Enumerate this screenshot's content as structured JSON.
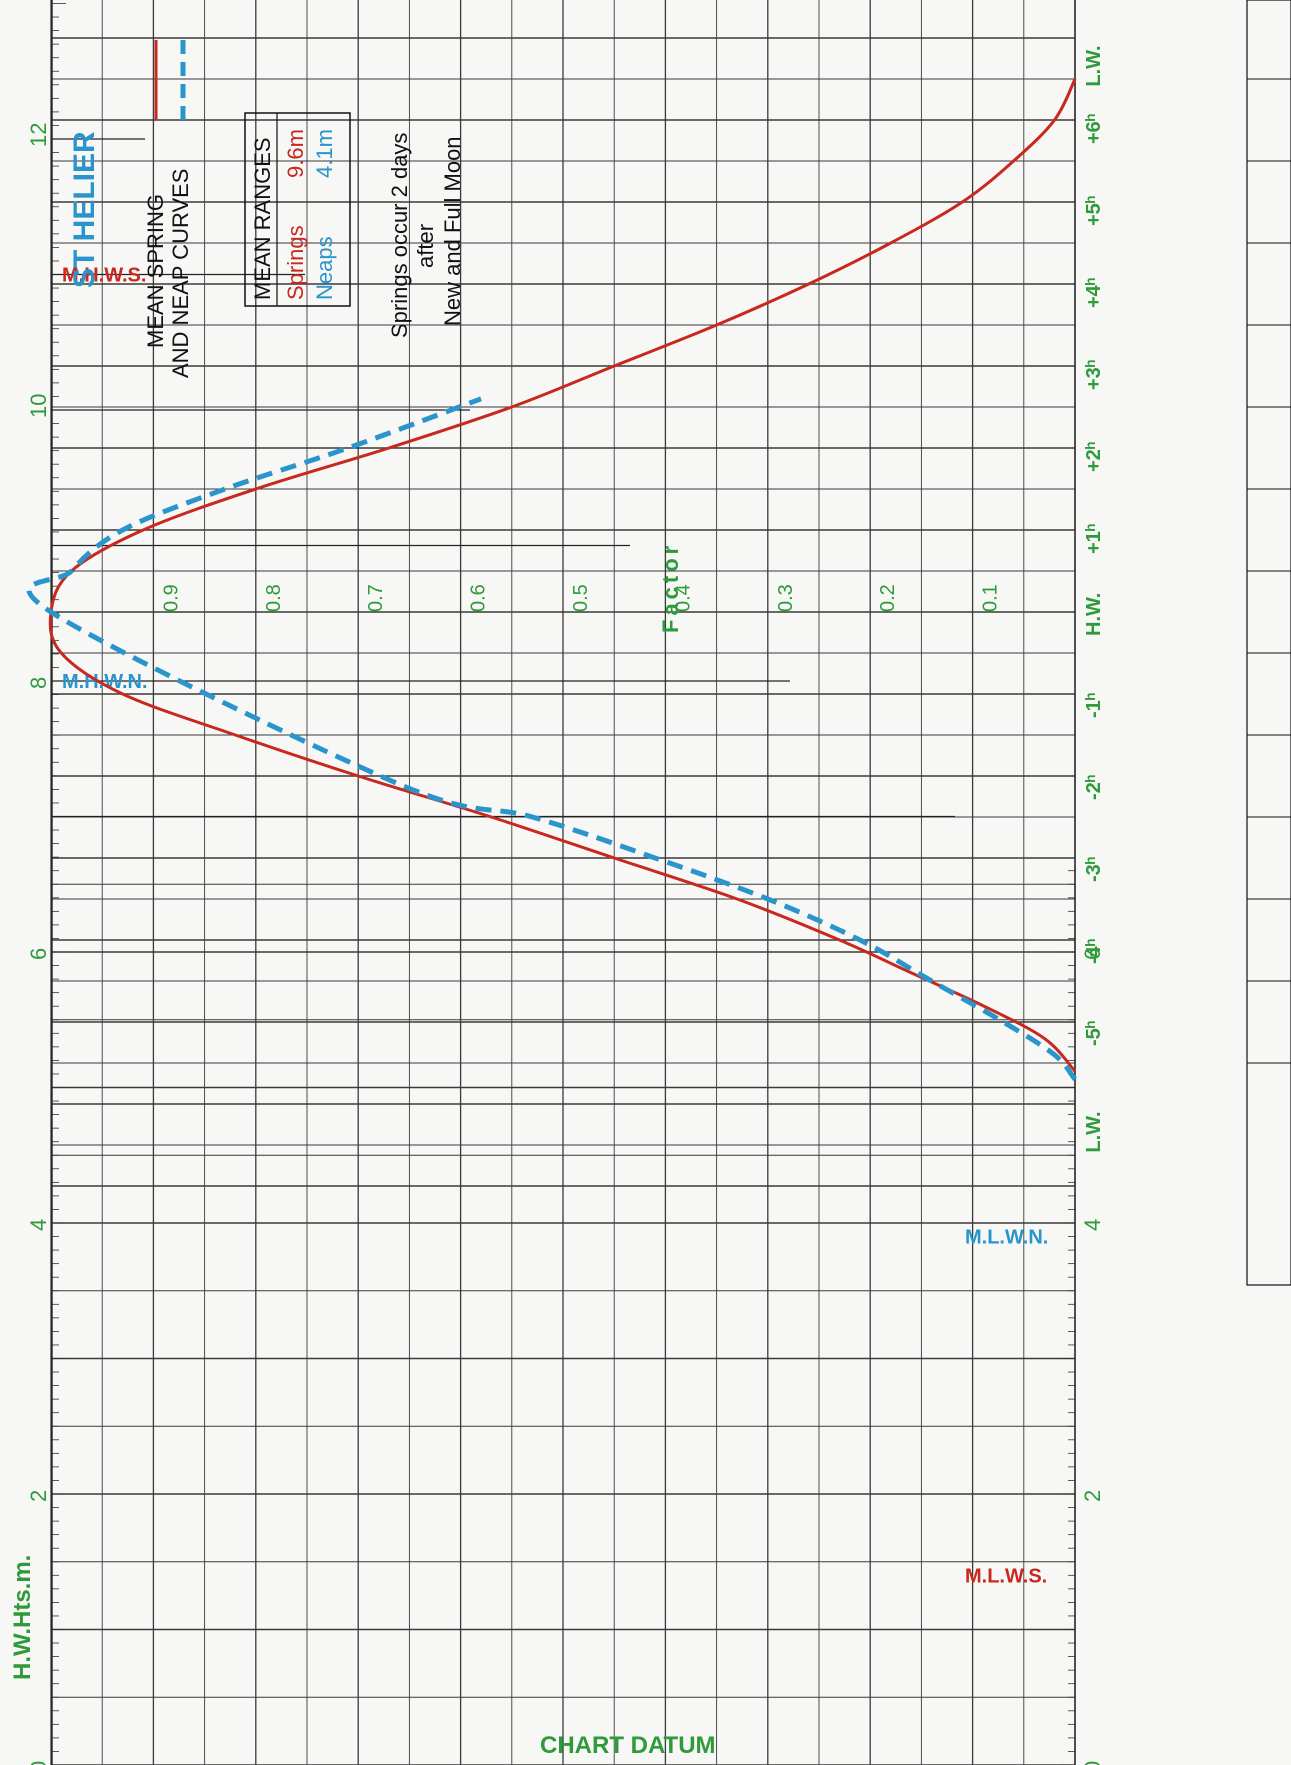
{
  "title": "ST HELIER",
  "legend": {
    "line1": "MEAN SPRING",
    "line2": "AND NEAP CURVES"
  },
  "mean_ranges": {
    "heading": "MEAN RANGES",
    "springs_label": "Springs",
    "springs_value": "9.6m",
    "neaps_label": "Neaps",
    "neaps_value": "4.1m"
  },
  "note": {
    "line1": "Springs occur 2 days",
    "line2": "after",
    "line3": "New and Full Moon"
  },
  "colors": {
    "springs": "#c8281e",
    "neaps": "#2a95cc",
    "labels": "#2e9a3a",
    "grid": "#2a2a2a"
  },
  "chart_data": {
    "type": "line",
    "title": "ST HELIER",
    "factor_axis": {
      "label": "Factor",
      "ticks": [
        "0.9",
        "0.8",
        "0.7",
        "0.6",
        "0.5",
        "0.4",
        "0.3",
        "0.2",
        "0.1"
      ],
      "range": [
        0,
        1
      ]
    },
    "time_axis": {
      "ticks": [
        "L.W.",
        "-5ʰ",
        "-4ʰ",
        "-3ʰ",
        "-2ʰ",
        "-1ʰ",
        "H.W.",
        "+1ʰ",
        "+2ʰ",
        "+3ʰ",
        "+4ʰ",
        "+5ʰ",
        "+6ʰ",
        "L.W."
      ],
      "range_hours": [
        -6.6,
        6.6
      ]
    },
    "height_axis": {
      "label": "H.W.Hts.m.",
      "ticks_left": [
        "0",
        "2",
        "4",
        "6",
        "8",
        "10",
        "12"
      ],
      "ticks_right": [
        "0",
        "2",
        "4",
        "6"
      ],
      "range_m": [
        0,
        12
      ]
    },
    "levels": [
      {
        "name": "M.H.W.S.",
        "value_m": 11.0
      },
      {
        "name": "M.H.W.N.",
        "value_m": 8.0
      },
      {
        "name": "M.L.W.N.",
        "value_m": 3.9
      },
      {
        "name": "M.L.W.S.",
        "value_m": 1.4
      }
    ],
    "bottom_label": "CHART DATUM",
    "series": [
      {
        "name": "Springs",
        "color": "#c8281e",
        "style": "solid",
        "hours": [
          -5.6,
          -5.2,
          -4.8,
          -4.4,
          -4.0,
          -3.5,
          -3.0,
          -2.5,
          -2.0,
          -1.5,
          -1.0,
          -0.5,
          0,
          0.5,
          1.0,
          1.5,
          2.0,
          2.5,
          3.0,
          3.5,
          4.0,
          4.5,
          5.0,
          5.5,
          6.0,
          6.5
        ],
        "factor": [
          0.0,
          0.03,
          0.09,
          0.16,
          0.23,
          0.33,
          0.45,
          0.57,
          0.7,
          0.82,
          0.93,
          0.99,
          1.0,
          0.98,
          0.91,
          0.8,
          0.67,
          0.55,
          0.45,
          0.35,
          0.26,
          0.18,
          0.11,
          0.06,
          0.02,
          0.0
        ]
      },
      {
        "name": "Neaps",
        "color": "#2a95cc",
        "style": "dashed",
        "hours": [
          -5.7,
          -5.4,
          -5.0,
          -4.5,
          -4.0,
          -3.5,
          -3.0,
          -2.5,
          -2.1,
          0,
          0.5,
          1.0,
          1.5,
          2.0,
          2.6
        ],
        "factor": [
          0.0,
          0.02,
          0.07,
          0.14,
          0.21,
          0.3,
          0.41,
          0.53,
          0.66,
          1.0,
          0.98,
          0.93,
          0.83,
          0.71,
          0.58
        ]
      }
    ]
  }
}
